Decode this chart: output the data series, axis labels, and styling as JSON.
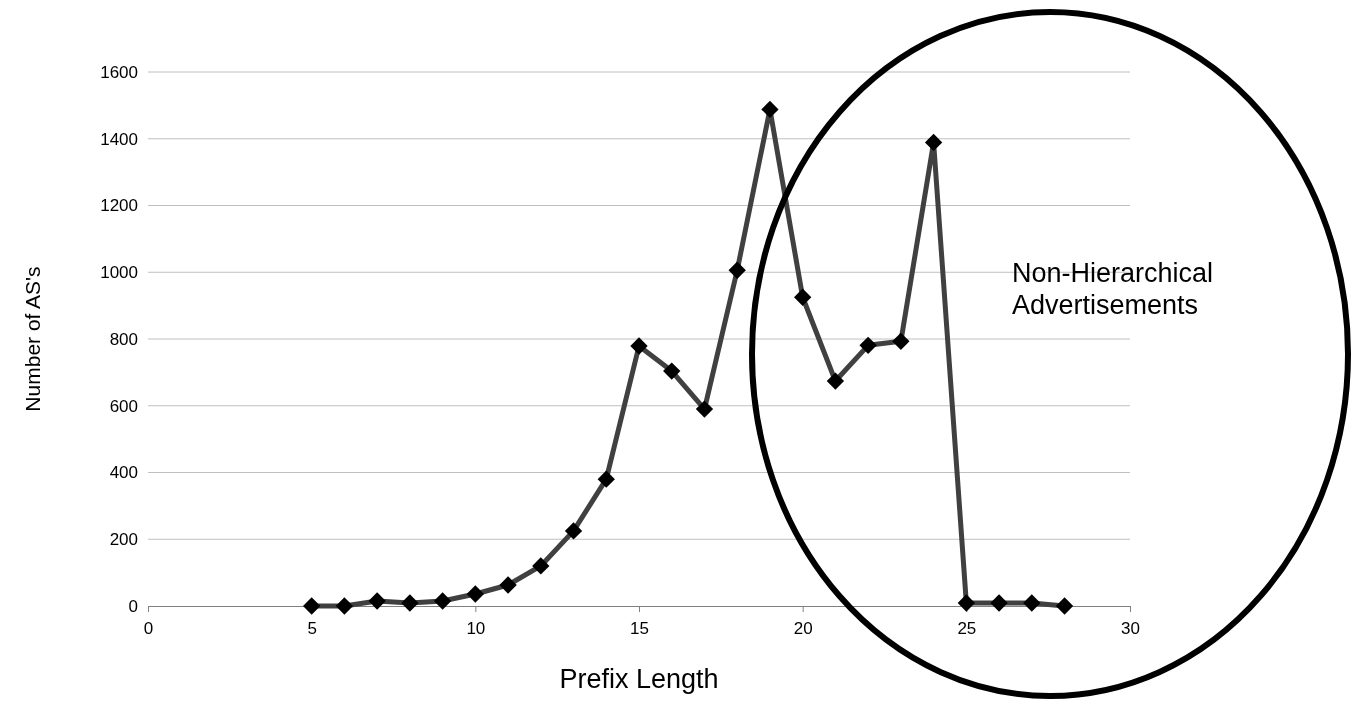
{
  "chart_data": {
    "type": "line",
    "xlabel": "Prefix Length",
    "ylabel": "Number of AS's",
    "x": [
      5,
      6,
      7,
      8,
      9,
      10,
      11,
      12,
      13,
      14,
      15,
      16,
      17,
      18,
      19,
      20,
      21,
      22,
      23,
      24,
      25,
      26,
      27,
      28
    ],
    "series": [
      {
        "color": "#404040",
        "values": [
          0,
          0,
          15,
          9,
          15,
          36,
          63,
          120,
          225,
          380,
          779,
          704,
          590,
          1006,
          1488,
          925,
          674,
          781,
          793,
          1389,
          9,
          9,
          9,
          0
        ]
      }
    ],
    "xlim": [
      0,
      30
    ],
    "xticks": [
      0,
      5,
      10,
      15,
      20,
      25,
      30
    ],
    "ylim": [
      0,
      1600
    ],
    "yticks": [
      0,
      200,
      400,
      600,
      800,
      1000,
      1200,
      1400,
      1600
    ],
    "grid": "y",
    "marker": "diamond",
    "line_style": "solid",
    "annotations": [
      "Non-Hierarchical Advertisements"
    ]
  }
}
